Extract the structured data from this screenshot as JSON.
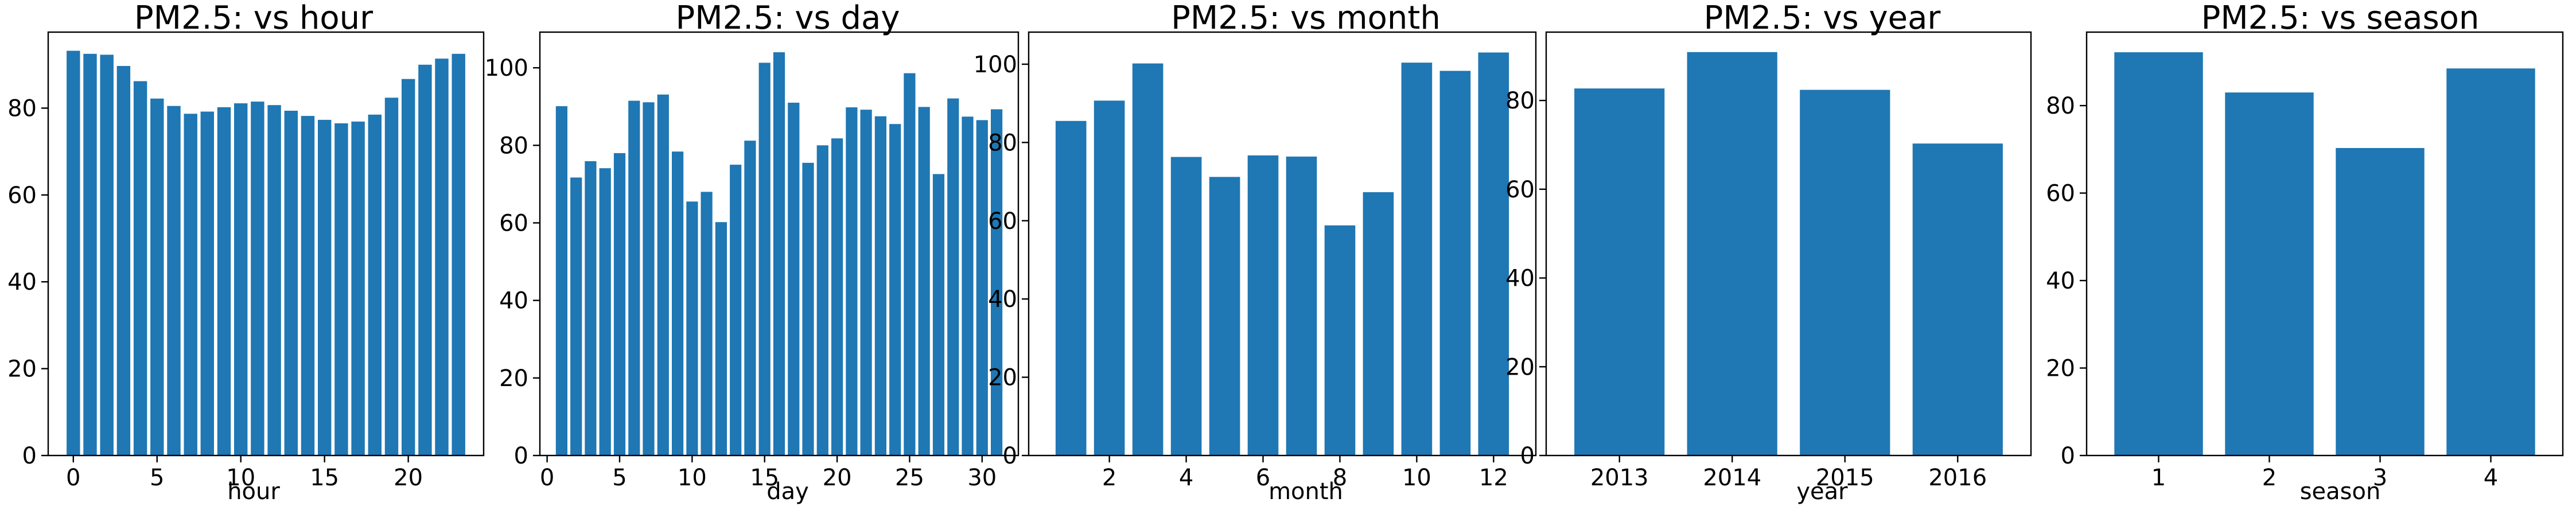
{
  "chart_data": [
    {
      "type": "bar",
      "title": "PM2.5: vs hour",
      "xlabel": "hour",
      "ylabel": "",
      "x": [
        0,
        1,
        2,
        3,
        4,
        5,
        6,
        7,
        8,
        9,
        10,
        11,
        12,
        13,
        14,
        15,
        16,
        17,
        18,
        19,
        20,
        21,
        22,
        23
      ],
      "values": [
        93.2,
        92.5,
        92.3,
        89.7,
        86.2,
        82.2,
        80.5,
        78.7,
        79.2,
        80.2,
        81.1,
        81.5,
        80.7,
        79.4,
        78.2,
        77.3,
        76.5,
        76.9,
        78.5,
        82.4,
        86.7,
        90.0,
        91.4,
        92.5
      ],
      "xlim": [
        -1.5,
        24.5
      ],
      "ylim": [
        0,
        97.5
      ],
      "xticks": [
        0,
        5,
        10,
        15,
        20
      ],
      "xtick_labels": [
        "0",
        "5",
        "10",
        "15",
        "20"
      ],
      "yticks": [
        0,
        20,
        40,
        60,
        80
      ],
      "ytick_labels": [
        "0",
        "20",
        "40",
        "60",
        "80"
      ]
    },
    {
      "type": "bar",
      "title": "PM2.5: vs day",
      "xlabel": "day",
      "ylabel": "",
      "x": [
        1,
        2,
        3,
        4,
        5,
        6,
        7,
        8,
        9,
        10,
        11,
        12,
        13,
        14,
        15,
        16,
        17,
        18,
        19,
        20,
        21,
        22,
        23,
        24,
        25,
        26,
        27,
        28,
        29,
        30,
        31
      ],
      "values": [
        90.1,
        71.7,
        75.9,
        74.1,
        78.0,
        91.5,
        91.1,
        93.1,
        78.4,
        65.5,
        68.0,
        60.2,
        75.0,
        81.2,
        101.3,
        104.0,
        91.0,
        75.5,
        80.0,
        81.8,
        89.8,
        89.2,
        87.5,
        85.5,
        98.6,
        89.9,
        72.6,
        92.1,
        87.4,
        86.5,
        89.3
      ],
      "xlim": [
        -0.5,
        32.5
      ],
      "ylim": [
        0,
        109.2
      ],
      "xticks": [
        0,
        5,
        10,
        15,
        20,
        25,
        30
      ],
      "xtick_labels": [
        "0",
        "5",
        "10",
        "15",
        "20",
        "25",
        "30"
      ],
      "yticks": [
        0,
        20,
        40,
        60,
        80,
        100
      ],
      "ytick_labels": [
        "0",
        "20",
        "40",
        "60",
        "80",
        "100"
      ]
    },
    {
      "type": "bar",
      "title": "PM2.5: vs month",
      "xlabel": "month",
      "ylabel": "",
      "x": [
        1,
        2,
        3,
        4,
        5,
        6,
        7,
        8,
        9,
        10,
        11,
        12
      ],
      "values": [
        85.5,
        90.7,
        100.2,
        76.3,
        71.2,
        76.7,
        76.4,
        58.8,
        67.3,
        100.4,
        98.3,
        103.0
      ],
      "xlim": [
        -0.1,
        13.1
      ],
      "ylim": [
        0,
        108.2
      ],
      "xticks": [
        2,
        4,
        6,
        8,
        10,
        12
      ],
      "xtick_labels": [
        "2",
        "4",
        "6",
        "8",
        "10",
        "12"
      ],
      "yticks": [
        0,
        20,
        40,
        60,
        80,
        100
      ],
      "ytick_labels": [
        "0",
        "20",
        "40",
        "60",
        "80",
        "100"
      ]
    },
    {
      "type": "bar",
      "title": "PM2.5: vs year",
      "xlabel": "year",
      "ylabel": "",
      "x": [
        2013,
        2014,
        2015,
        2016
      ],
      "values": [
        82.7,
        90.9,
        82.4,
        70.3
      ],
      "xlim": [
        2012.35,
        2016.65
      ],
      "ylim": [
        0,
        95.4
      ],
      "xticks": [
        2013,
        2014,
        2015,
        2016
      ],
      "xtick_labels": [
        "2013",
        "2014",
        "2015",
        "2016"
      ],
      "yticks": [
        0,
        20,
        40,
        60,
        80
      ],
      "ytick_labels": [
        "0",
        "20",
        "40",
        "60",
        "80"
      ]
    },
    {
      "type": "bar",
      "title": "PM2.5: vs season",
      "xlabel": "season",
      "ylabel": "",
      "x": [
        1,
        2,
        3,
        4
      ],
      "values": [
        92.2,
        83.0,
        70.3,
        88.5
      ],
      "xlim": [
        0.35,
        4.65
      ],
      "ylim": [
        0,
        96.8
      ],
      "xticks": [
        1,
        2,
        3,
        4
      ],
      "xtick_labels": [
        "1",
        "2",
        "3",
        "4"
      ],
      "yticks": [
        0,
        20,
        40,
        60,
        80
      ],
      "ytick_labels": [
        "0",
        "20",
        "40",
        "60",
        "80"
      ]
    }
  ],
  "colors": {
    "bar": "#1f77b4",
    "axes": "#000000",
    "background": "#ffffff"
  }
}
